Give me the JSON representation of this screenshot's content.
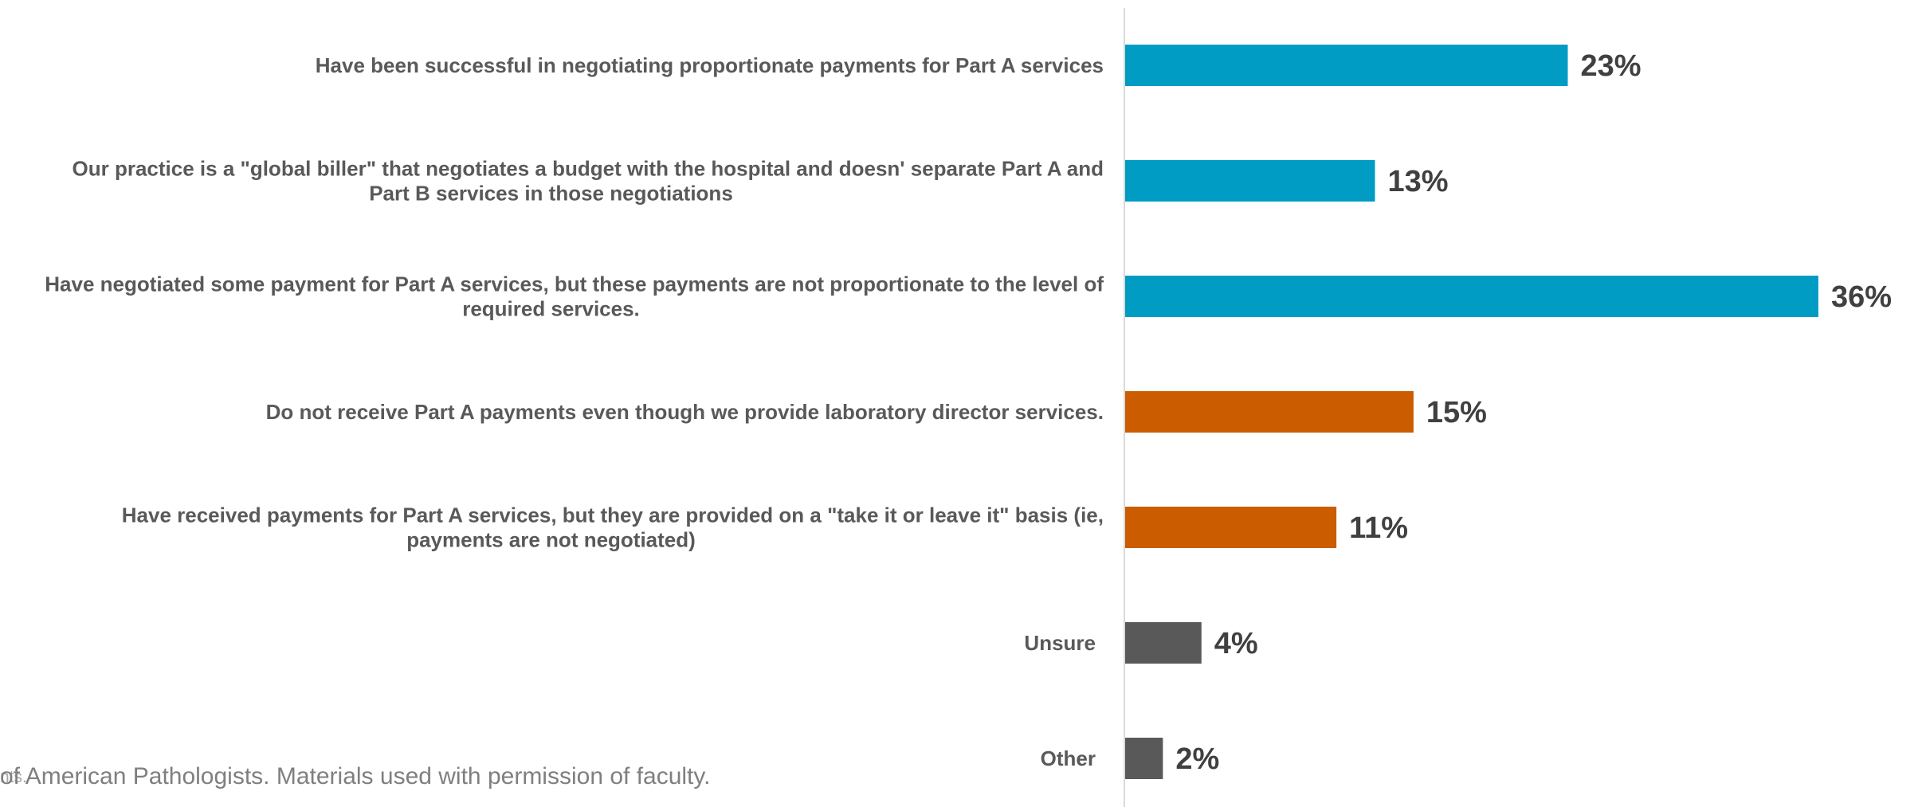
{
  "chart_data": {
    "type": "bar",
    "orientation": "horizontal",
    "categories": [
      "Have been successful in negotiating proportionate payments for Part A services",
      "Our practice is a \"global biller\" that negotiates a budget with the hospital and doesn' separate Part A and Part B services in those negotiations",
      "Have negotiated some payment for Part A services, but these payments are not proportionate to the level of required services.",
      "Do not receive Part A payments even though we provide laboratory director services.",
      "Have received payments for Part A services, but they are provided on a \"take it or leave it\" basis (ie, payments are not negotiated)",
      "Unsure",
      "Other"
    ],
    "category_lines": [
      [
        "Have been successful in negotiating proportionate payments for Part A services"
      ],
      [
        "Our practice is a \"global biller\" that negotiates a budget with the hospital and doesn' separate Part A and",
        "Part B services in those negotiations"
      ],
      [
        "Have negotiated some payment for Part A services, but these payments are not proportionate to the level of",
        "required services."
      ],
      [
        "Do not receive Part A payments even though we provide laboratory director services."
      ],
      [
        "Have received payments for Part A services, but they are provided on a \"take it or leave it\" basis (ie,",
        "payments are not negotiated)"
      ],
      [
        "Unsure"
      ],
      [
        "Other"
      ]
    ],
    "values": [
      23,
      13,
      36,
      15,
      11,
      4,
      2
    ],
    "value_labels": [
      "23%",
      "13%",
      "36%",
      "15%",
      "11%",
      "4%",
      "2%"
    ],
    "bar_colors": [
      "#009CC4",
      "#009CC4",
      "#009CC4",
      "#CC5C00",
      "#CC5C00",
      "#595959",
      "#595959"
    ],
    "xlim": [
      0,
      36
    ],
    "title": "",
    "xlabel": "",
    "ylabel": "",
    "grid": false,
    "legend": "none"
  },
  "footer": {
    "text": "of American Pathologists. Materials used with permission of faculty.",
    "ghost_text": "nts."
  },
  "colors": {
    "blue": "#009CC4",
    "orange": "#CC5C00",
    "gray": "#595959",
    "axis": "#d9d9d9"
  }
}
